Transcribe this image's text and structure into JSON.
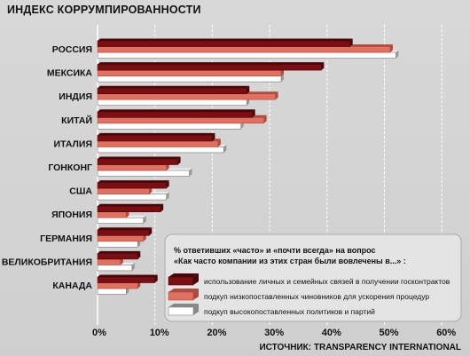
{
  "chart_data": {
    "type": "bar",
    "title": "ИНДЕКС КОРРУМПИРОВАННОСТИ",
    "source": "ИСТОЧНИК: TRANSPARENCY INTERNATIONAL",
    "categories": [
      "РОССИЯ",
      "МЕКСИКА",
      "ИНДИЯ",
      "КИТАЙ",
      "ИТАЛИЯ",
      "ГОНКОНГ",
      "США",
      "ЯПОНИЯ",
      "ГЕРМАНИЯ",
      "ВЕЛИКОБРИТАНИЯ",
      "КАНАДА"
    ],
    "series": [
      {
        "name": "использование личных и семейных связей в получении госконтрактов",
        "color": "#7a0e12",
        "values": [
          44,
          39,
          26,
          27,
          20,
          14,
          12,
          11,
          9,
          7,
          10
        ]
      },
      {
        "name": "подкуп низкопоставленных чиновников для ускорения процедур",
        "color": "#e07060",
        "values": [
          51,
          32,
          31,
          29,
          21,
          12,
          9,
          5,
          8,
          4,
          7
        ]
      },
      {
        "name": "подкуп высокопоставленных политиков и партий",
        "color": "#ffffff",
        "values": [
          52,
          32,
          26,
          25,
          22,
          16,
          12,
          8,
          7,
          6,
          5
        ]
      }
    ],
    "xticks": [
      "0%",
      "10%",
      "20%",
      "30%",
      "40%",
      "50%",
      "60%"
    ],
    "xlim": [
      0,
      60
    ],
    "legend_title_lines": [
      "% ответивших «часто» и «почти всегда» на вопрос",
      "«Как часто компании из этих стран были вовлечены в...» :"
    ],
    "legend_position": "bottom-right",
    "grid": true
  }
}
